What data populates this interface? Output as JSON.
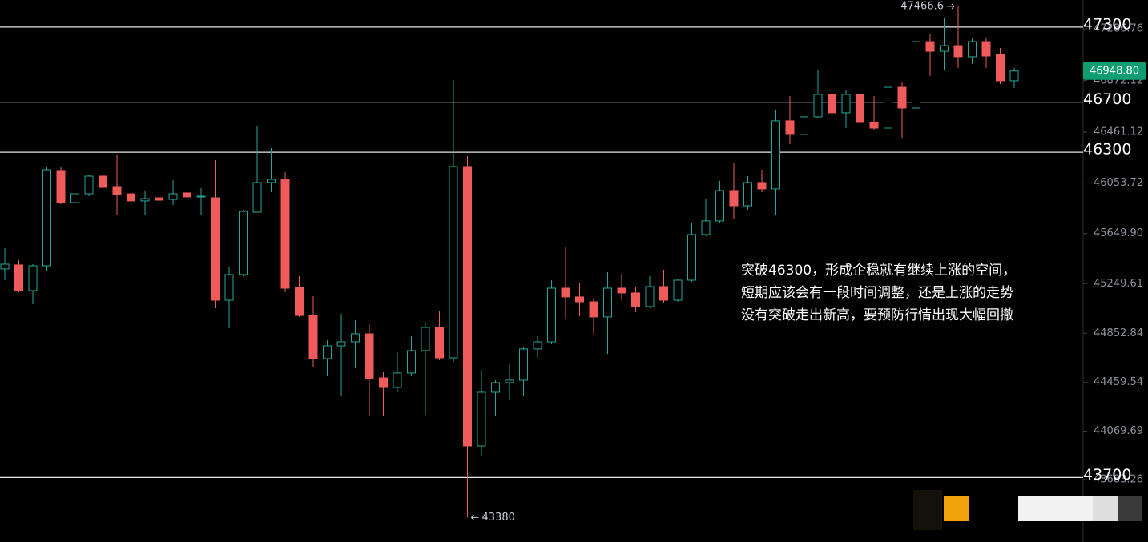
{
  "chart_data": {
    "type": "candlestick",
    "up_color": "#26a69a",
    "down_color": "#ef5a5a",
    "up_style": "hollow",
    "grid": false,
    "ylim": [
      43184,
      47517
    ],
    "yticks": [
      47286.76,
      46872.12,
      46461.12,
      46053.72,
      {
        "value": 45649.9,
        "label": "45649.90"
      },
      45249.61,
      44852.84,
      44459.54,
      44069.69,
      43683.26
    ],
    "levels": [
      47300,
      46700,
      46300,
      43700
    ],
    "price_tag": "46948.80",
    "annotation": [
      "突破46300，形成企稳就有继续上涨的空间，",
      "短期应该会有一段时间调整，还是上涨的走势",
      "没有突破走出新高，要预防行情出现大幅回撤"
    ],
    "open": [
      45367,
      45399,
      45194,
      45392,
      46154,
      45898,
      45968,
      46109,
      46026,
      45968,
      45911,
      45936,
      45923,
      45975,
      45943,
      45936,
      45117,
      45322,
      45821,
      46058,
      46083,
      45219,
      44995,
      44650,
      44752,
      44784,
      44848,
      44496,
      44419,
      44535,
      44714,
      44899,
      44656,
      46186,
      43952,
      44381,
      44458,
      44477,
      44727,
      44784,
      45213,
      45143,
      45104,
      44983,
      45213,
      45175,
      45066,
      45226,
      45117,
      45277,
      45642,
      45751,
      45994,
      45872,
      46058,
      46007,
      46551,
      46442,
      46583,
      46762,
      46615,
      46762,
      46538,
      46493,
      46819,
      46653,
      47184,
      47107,
      47152,
      47063,
      47184,
      47082,
      46871
    ],
    "high": [
      45533,
      45437,
      45405,
      46186,
      46179,
      46007,
      46122,
      46173,
      46282,
      46000,
      45994,
      46154,
      46077,
      46045,
      46013,
      46237,
      45386,
      45840,
      46506,
      46333,
      46141,
      45309,
      45149,
      44797,
      45008,
      44957,
      44925,
      44541,
      44701,
      44829,
      44938,
      45034,
      46877,
      46269,
      44560,
      44477,
      44605,
      44746,
      44829,
      45277,
      45539,
      45258,
      45136,
      45341,
      45328,
      45226,
      45309,
      45360,
      45290,
      45738,
      45930,
      46071,
      46218,
      46109,
      46160,
      46634,
      46749,
      46621,
      46960,
      46896,
      46800,
      46813,
      46749,
      46973,
      46864,
      47242,
      47248,
      47376,
      47466.6,
      47210,
      47210,
      47133,
      46973
    ],
    "low": [
      45277,
      45181,
      45085,
      45354,
      45885,
      45789,
      45949,
      45981,
      45802,
      45821,
      45802,
      45885,
      45879,
      45840,
      45802,
      45053,
      44893,
      45309,
      45821,
      45981,
      45181,
      44983,
      44586,
      44509,
      44349,
      44573,
      44189,
      44189,
      44381,
      44509,
      44202,
      44637,
      44624,
      43380,
      43869,
      44189,
      44317,
      44349,
      44656,
      44765,
      44970,
      44989,
      44842,
      44688,
      45117,
      45021,
      45053,
      45091,
      45104,
      45264,
      45629,
      45738,
      45770,
      45840,
      45981,
      45802,
      46365,
      46173,
      46570,
      46544,
      46493,
      46365,
      46474,
      46480,
      46416,
      46608,
      46909,
      46960,
      46973,
      47005,
      46973,
      46845,
      46813
    ],
    "close": [
      45405,
      45194,
      45392,
      46160,
      45898,
      45968,
      46109,
      46019,
      45962,
      45911,
      45930,
      45917,
      45968,
      45943,
      45949,
      45117,
      45322,
      45827,
      46058,
      46083,
      45213,
      44995,
      44650,
      44752,
      44784,
      44848,
      44490,
      44419,
      44535,
      44714,
      44899,
      44656,
      46186,
      43952,
      44381,
      44458,
      44477,
      44727,
      44784,
      45213,
      45143,
      45104,
      44983,
      45213,
      45175,
      45066,
      45226,
      45117,
      45277,
      45642,
      45751,
      45994,
      45872,
      46058,
      46007,
      46551,
      46442,
      46583,
      46762,
      46615,
      46762,
      46538,
      46493,
      46819,
      46653,
      47184,
      47107,
      47152,
      47063,
      47184,
      47069,
      46871,
      46948.8
    ]
  }
}
